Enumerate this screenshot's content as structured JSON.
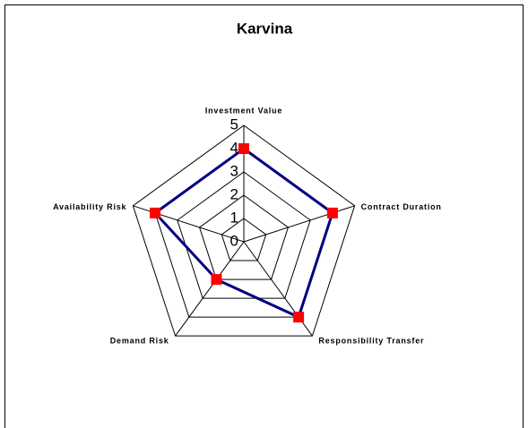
{
  "chart_data": {
    "type": "radar",
    "title": "Karvina",
    "categories": [
      "Investment Value",
      "Contract Duration",
      "Responsibility Transfer",
      "Demand Risk",
      "Availability Risk"
    ],
    "series": [
      {
        "name": "Karvina",
        "color": "#000080",
        "marker_color": "#ff0000",
        "values": [
          4,
          4,
          4,
          2,
          4
        ]
      }
    ],
    "ylim": [
      0,
      5
    ],
    "yticks": [
      0,
      1,
      2,
      3,
      4,
      5
    ],
    "grid": true
  }
}
